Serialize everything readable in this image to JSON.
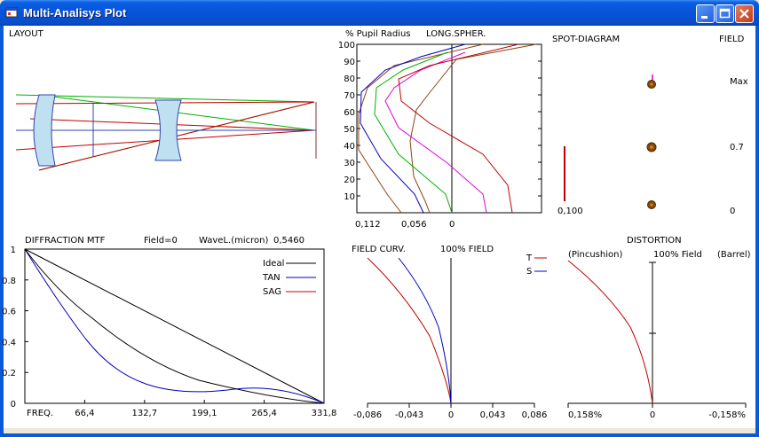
{
  "window": {
    "title": "Multi-Analisys Plot"
  },
  "layout": {
    "label": "LAYOUT"
  },
  "longspher": {
    "header_left": "% Pupil Radius",
    "header_right": "LONG.SPHER.",
    "y_ticks": [
      "100",
      "90",
      "80",
      "70",
      "60",
      "50",
      "40",
      "30",
      "20",
      "10"
    ],
    "x_ticks": [
      "0,112",
      "0,056",
      "0"
    ]
  },
  "spot": {
    "title": "SPOT-DIAGRAM",
    "field_header": "FIELD",
    "fields": [
      "Max",
      "0.7",
      "0"
    ],
    "scale_label": "0,100"
  },
  "mtf": {
    "title": "DIFFRACTION  MTF",
    "field_label": "Field=0",
    "wavel_label": "WaveL.(micron)",
    "wavel_value": "0,5460",
    "y_ticks": [
      "1",
      "0.8",
      "0.6",
      "0.4",
      "0.2",
      "0"
    ],
    "x_ticks": [
      "FREQ.",
      "66,4",
      "132,7",
      "199,1",
      "265,4",
      "331,8"
    ],
    "legend": [
      {
        "name": "Ideal",
        "color": "#000000"
      },
      {
        "name": "TAN",
        "color": "#0000c0"
      },
      {
        "name": "SAG",
        "color": "#c00000"
      }
    ]
  },
  "fieldcurv": {
    "title": "FIELD CURV.",
    "subtitle": "100% FIELD",
    "legend_t": "T",
    "legend_s": "S",
    "x_ticks": [
      "-0,086",
      "-0,043",
      "0",
      "0,043",
      "0,086"
    ]
  },
  "distortion": {
    "title": "DISTORTION",
    "left_label": "(Pincushion)",
    "center_label": "100% Field",
    "right_label": "(Barrel)",
    "x_ticks": [
      "0,158%",
      "0",
      "-0,158%"
    ]
  },
  "colors": {
    "red": "#c00000",
    "blue": "#0000c0",
    "green": "#00b000",
    "magenta": "#e000e0",
    "brown": "#8b4513",
    "lens": "#bfe0f0"
  }
}
